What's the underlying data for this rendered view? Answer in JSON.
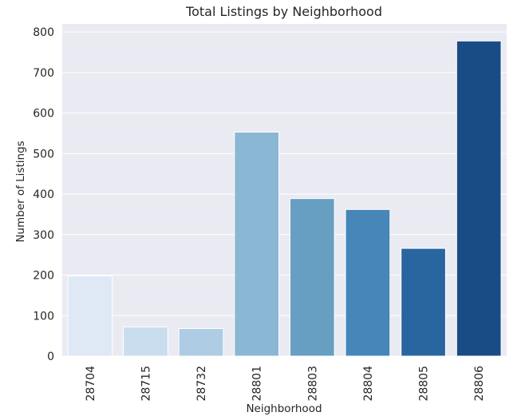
{
  "chart_data": {
    "type": "bar",
    "title": "Total Listings by Neighborhood",
    "xlabel": "Neighborhood",
    "ylabel": "Number of Listings",
    "categories": [
      "28704",
      "28715",
      "28732",
      "28801",
      "28803",
      "28804",
      "28805",
      "28806"
    ],
    "values": [
      198,
      72,
      68,
      553,
      389,
      362,
      266,
      778
    ],
    "colors": [
      "#dfe9f5",
      "#c9ddee",
      "#aecde4",
      "#8ab7d4",
      "#679fc2",
      "#4686b8",
      "#2966a0",
      "#194c85"
    ],
    "ylim": [
      0,
      820
    ],
    "yticks": [
      0,
      100,
      200,
      300,
      400,
      500,
      600,
      700,
      800
    ],
    "grid": true,
    "background": "#eaeaf2",
    "gridColor": "#ffffff",
    "legend": "none"
  }
}
